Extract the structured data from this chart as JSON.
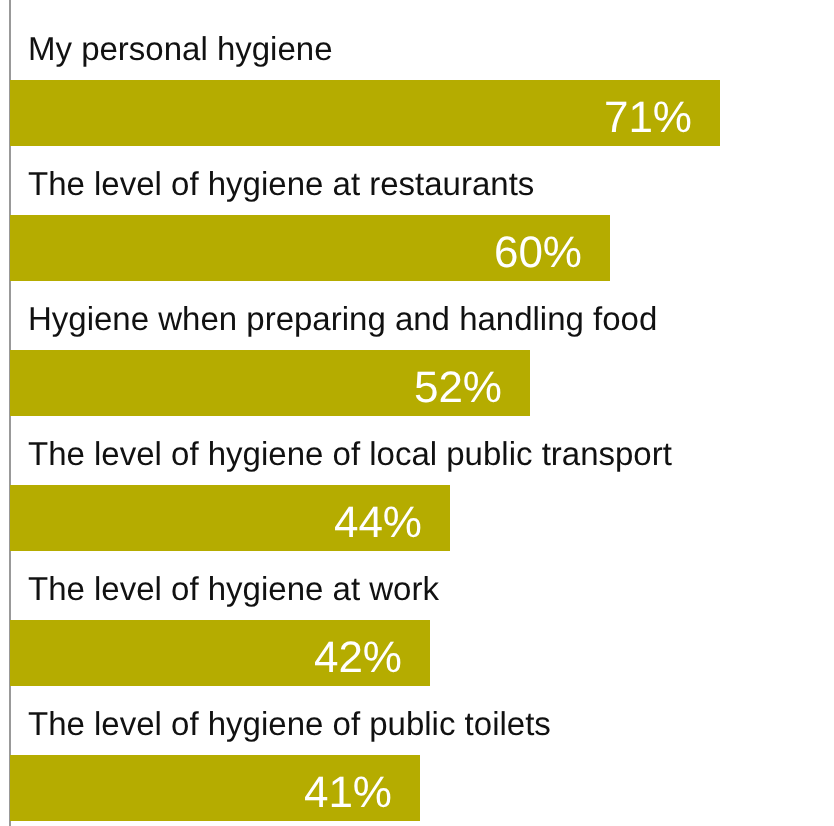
{
  "chart_data": {
    "type": "bar",
    "orientation": "horizontal",
    "categories": [
      "My personal hygiene",
      "The level of hygiene at restaurants",
      "Hygiene when preparing and handling food",
      "The level of hygiene of local public transport",
      "The level of hygiene at work",
      "The level of hygiene of public toilets"
    ],
    "values": [
      71,
      60,
      52,
      44,
      42,
      41
    ],
    "value_labels": [
      "71%",
      "60%",
      "52%",
      "44%",
      "42%",
      "41%"
    ],
    "color": "#b5ac00"
  }
}
